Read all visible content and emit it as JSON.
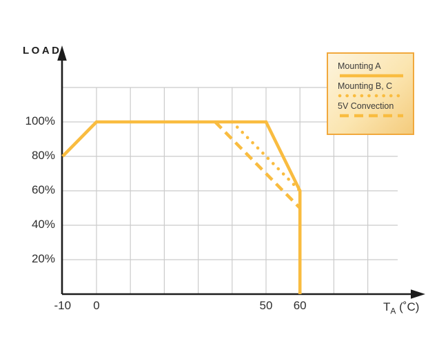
{
  "accent_color": "#f9bc40",
  "grid_color": "#cbcbcb",
  "axis_color": "#1c1c1c",
  "legend_border_color": "#f1a83c",
  "chart_data": {
    "type": "line",
    "title": "",
    "ylabel": "LOAD",
    "xlabel": "TA (°C)",
    "xlabel_parts": {
      "main": "T",
      "sub": "A",
      "unit": " (˚C)"
    },
    "xlim": [
      -10,
      96
    ],
    "ylim": [
      0,
      130
    ],
    "grid": "on",
    "legend_position": "top-right",
    "x_ticks": [
      {
        "value": -10,
        "label": "-10"
      },
      {
        "value": 0,
        "label": "0"
      },
      {
        "value": 50,
        "label": "50"
      },
      {
        "value": 60,
        "label": "60"
      }
    ],
    "y_ticks": [
      {
        "value": 20,
        "label": "20%"
      },
      {
        "value": 40,
        "label": "40%"
      },
      {
        "value": 60,
        "label": "60%"
      },
      {
        "value": 80,
        "label": "80%"
      },
      {
        "value": 100,
        "label": "100%"
      }
    ],
    "series": [
      {
        "name": "Mounting A",
        "style": "solid",
        "points": [
          [
            -10,
            80
          ],
          [
            0,
            100
          ],
          [
            50,
            100
          ],
          [
            60,
            60
          ],
          [
            60,
            0
          ]
        ]
      },
      {
        "name": "Mounting B, C",
        "style": "dotted",
        "points": [
          [
            40,
            100
          ],
          [
            60,
            60
          ]
        ]
      },
      {
        "name": "5V Convection",
        "style": "dashed",
        "points": [
          [
            35,
            100
          ],
          [
            60,
            50
          ]
        ]
      }
    ]
  }
}
